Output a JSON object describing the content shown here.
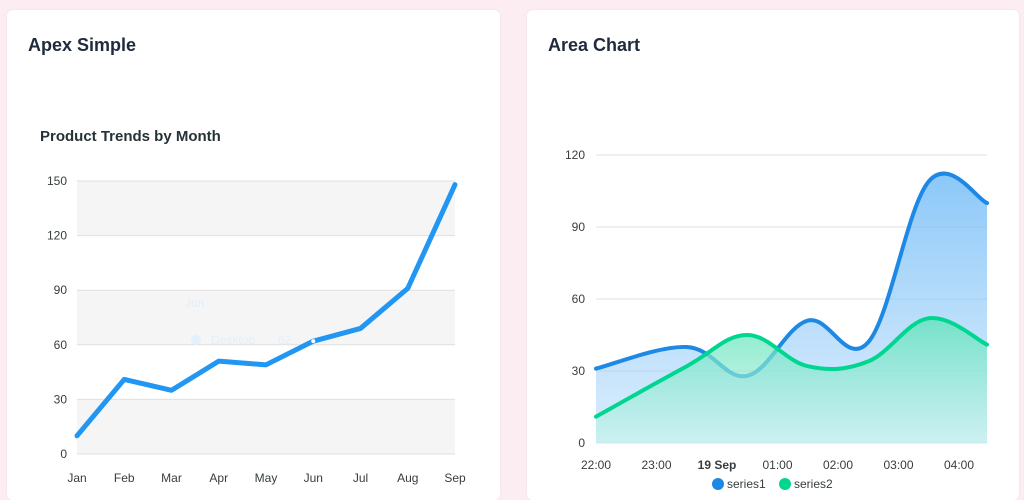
{
  "cards": [
    {
      "title": "Apex Simple"
    },
    {
      "title": "Area Chart"
    }
  ],
  "colors": {
    "page_bg": "#fcedf2",
    "line": "#2196f3",
    "series1": "#1e88e5",
    "series2": "#00d68f"
  },
  "chart_data": [
    {
      "type": "line",
      "title": "Product Trends by Month",
      "categories": [
        "Jan",
        "Feb",
        "Mar",
        "Apr",
        "May",
        "Jun",
        "Jul",
        "Aug",
        "Sep"
      ],
      "series": [
        {
          "values": [
            10,
            41,
            35,
            51,
            49,
            62,
            69,
            91,
            148
          ]
        }
      ],
      "ylim": [
        0,
        150
      ],
      "yticks": [
        0,
        30,
        60,
        90,
        120,
        150
      ],
      "grid": "horizontal, alternating row bands",
      "tooltip_faint": {
        "title": "Jun",
        "label": "Desktop",
        "value": "62"
      }
    },
    {
      "type": "area",
      "x_ticks": [
        "22:00",
        "23:00",
        "19 Sep",
        "01:00",
        "02:00",
        "03:00",
        "04:00"
      ],
      "x_hours": [
        -1,
        0,
        1,
        2,
        3,
        4,
        5,
        6,
        7
      ],
      "series": [
        {
          "name": "series1",
          "values": [
            31,
            40,
            28,
            51,
            42,
            109,
            100
          ]
        },
        {
          "name": "series2",
          "values": [
            11,
            32,
            45,
            32,
            34,
            52,
            41
          ]
        }
      ],
      "x_points": [
        0,
        1.5,
        2.5,
        3.5,
        4.5,
        5.5,
        6.5
      ],
      "ylim": [
        0,
        120
      ],
      "yticks": [
        0,
        30,
        60,
        90,
        120
      ],
      "legend": "bottom-center"
    }
  ]
}
